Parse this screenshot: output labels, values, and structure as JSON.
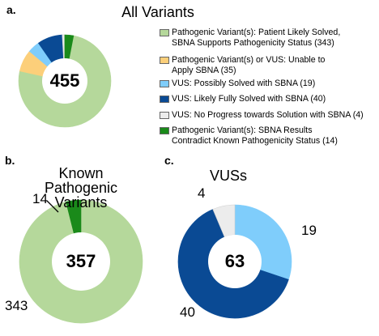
{
  "chart_data": [
    {
      "type": "donut",
      "panel": "a.",
      "title": "All Variants",
      "total": 455,
      "categories": [
        "Pathogenic Variant(s): Patient Likely Solved,\nSBNA Supports Pathogenicity Status (343)",
        "Pathogenic Variant(s) or VUS: Unable to\nApply SBNA (35)",
        "VUS: Possibly Solved with SBNA (19)",
        "VUS: Likely Fully Solved with SBNA (40)",
        "VUS: No Progress towards Solution with SBNA (4)",
        "Pathogenic Variant(s): SBNA Results\nContradict Known Pathogenicity Status (14)"
      ],
      "values": [
        343,
        35,
        19,
        40,
        4,
        14
      ],
      "colors": [
        "#b5d89b",
        "#fccf7a",
        "#7fcdfb",
        "#0a4a94",
        "#ececec",
        "#1a8a1a"
      ],
      "legend": true
    },
    {
      "type": "donut",
      "panel": "b.",
      "title": "Known Pathogenic\nVariants",
      "total": 357,
      "values": [
        343,
        14
      ],
      "colors": [
        "#b5d89b",
        "#1a8a1a"
      ]
    },
    {
      "type": "donut",
      "panel": "c.",
      "title": "VUSs",
      "total": 63,
      "values": [
        19,
        40,
        4
      ],
      "colors": [
        "#7fcdfb",
        "#0a4a94",
        "#ececec"
      ]
    }
  ]
}
